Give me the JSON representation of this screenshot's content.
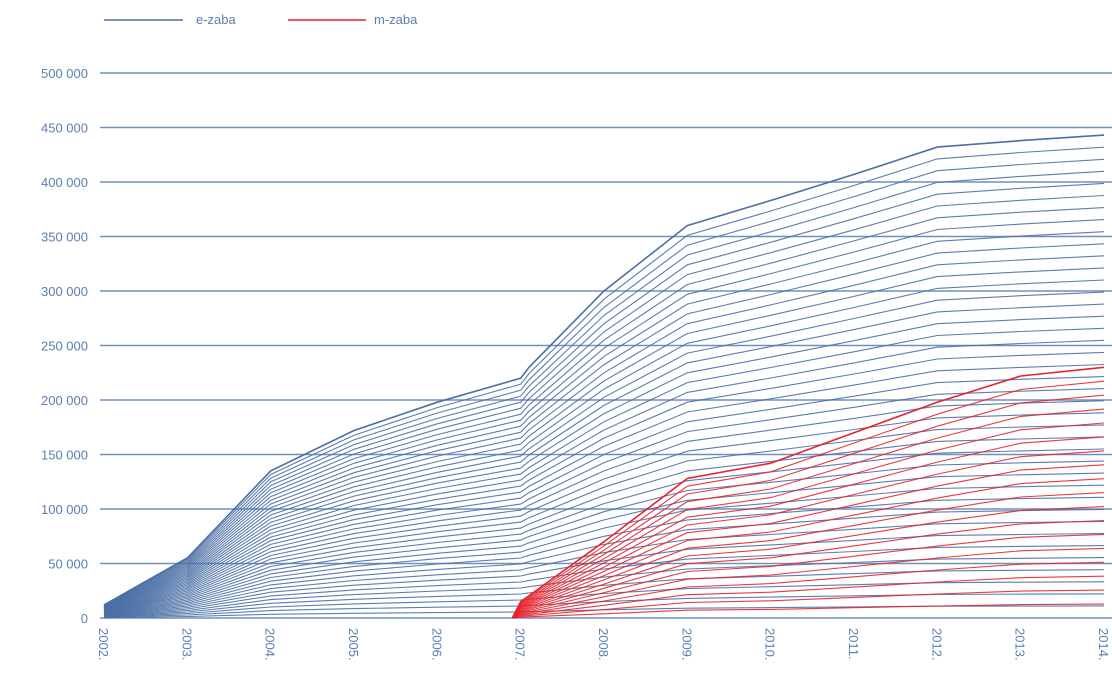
{
  "chart_data": {
    "type": "line",
    "title": "",
    "xlabel": "",
    "ylabel": "",
    "legend": {
      "placement": "top-left",
      "items": [
        {
          "label": "e-zaba",
          "color": "#4a6fa5"
        },
        {
          "label": "m-zaba",
          "color": "#e8232a"
        }
      ]
    },
    "ylim": [
      0,
      500000
    ],
    "grid": true,
    "y_ticks": [
      {
        "value": 0,
        "label": "0"
      },
      {
        "value": 50000,
        "label": "50 000"
      },
      {
        "value": 100000,
        "label": "100 000"
      },
      {
        "value": 150000,
        "label": "150 000"
      },
      {
        "value": 200000,
        "label": "200 000"
      },
      {
        "value": 250000,
        "label": "250 000"
      },
      {
        "value": 300000,
        "label": "300 000"
      },
      {
        "value": 350000,
        "label": "350 000"
      },
      {
        "value": 400000,
        "label": "400 000"
      },
      {
        "value": 450000,
        "label": "450 000"
      },
      {
        "value": 500000,
        "label": "500 000"
      }
    ],
    "x": [
      2002,
      2003,
      2004,
      2005,
      2006,
      2007,
      2008,
      2009,
      2010,
      2011,
      2012,
      2013,
      2014
    ],
    "x_tick_labels": [
      "2002.",
      "2003.",
      "2004.",
      "2005.",
      "2006.",
      "2007.",
      "2008.",
      "2009.",
      "2010.",
      "2011.",
      "2012.",
      "2013.",
      "2014."
    ],
    "series": [
      {
        "name": "e-zaba",
        "color": "#4a6fa5",
        "x": [
          2002,
          2003,
          2004,
          2005,
          2006,
          2007,
          2007.1,
          2008,
          2009,
          2010,
          2011,
          2012,
          2013,
          2014
        ],
        "values": [
          12000,
          55000,
          135000,
          172000,
          198000,
          220000,
          230000,
          300000,
          360000,
          383000,
          407000,
          432000,
          438000,
          443000
        ]
      },
      {
        "name": "m-zaba",
        "color": "#e8232a",
        "x": [
          2006.9,
          2007,
          2008,
          2009,
          2010,
          2011,
          2012,
          2013,
          2014
        ],
        "values": [
          0,
          15000,
          70000,
          128000,
          142000,
          170000,
          198000,
          222000,
          230000
        ]
      }
    ]
  }
}
